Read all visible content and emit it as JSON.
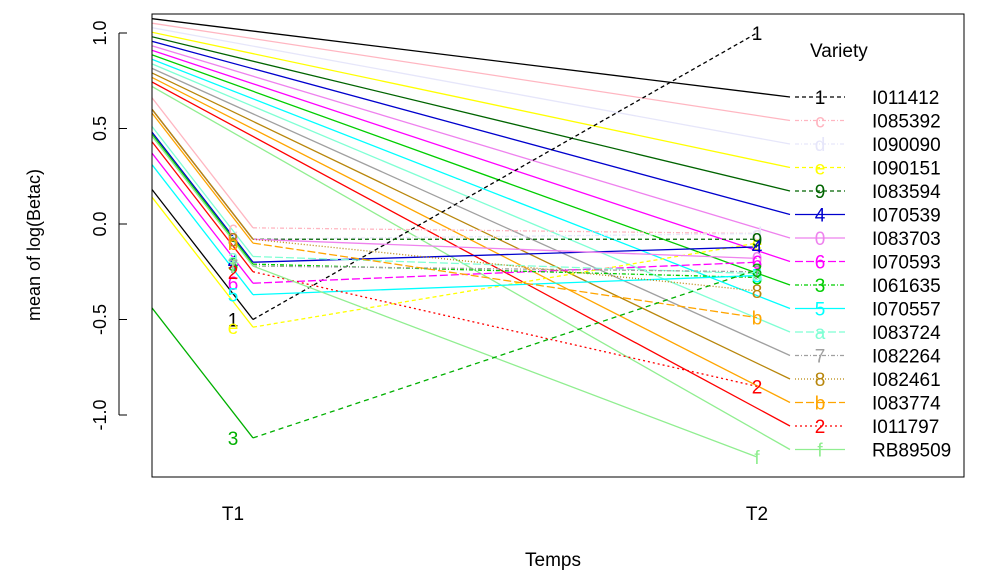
{
  "chart_data": {
    "type": "line",
    "xlabel": "Temps",
    "ylabel": "mean of  log(Betac)",
    "categories": [
      "T1",
      "T2"
    ],
    "yticks": [
      -1.0,
      -0.5,
      0.0,
      0.5,
      1.0
    ],
    "ytick_labels": [
      "-1.0",
      "-0.5",
      "0.0",
      "0.5",
      "1.0"
    ],
    "ylim": [
      -1.3,
      1.07
    ],
    "legend_title": "Variety",
    "legend_position": "right",
    "series": [
      {
        "name": "I011412",
        "symbol": "1",
        "color": "#000000",
        "dash": "4,3",
        "values": [
          -0.5,
          1.0
        ]
      },
      {
        "name": "I085392",
        "symbol": "c",
        "color": "#ffb6c1",
        "dash": "4,2,1,2",
        "values": [
          -0.02,
          -0.05
        ]
      },
      {
        "name": "I090090",
        "symbol": "d",
        "color": "#e6e6fa",
        "dash": "4,2,1,2",
        "values": [
          -0.08,
          -0.05
        ]
      },
      {
        "name": "I090151",
        "symbol": "e",
        "color": "#ffff00",
        "dash": "4,3",
        "values": [
          -0.54,
          -0.1
        ]
      },
      {
        "name": "I083594",
        "symbol": "9",
        "color": "#006400",
        "dash": "4,3",
        "values": [
          -0.08,
          -0.08
        ]
      },
      {
        "name": "I070539",
        "symbol": "4",
        "color": "#0000cd",
        "dash": "",
        "values": [
          -0.2,
          -0.12
        ]
      },
      {
        "name": "I083703",
        "symbol": "0",
        "color": "#ee82ee",
        "dash": "",
        "values": [
          -0.08,
          -0.18
        ]
      },
      {
        "name": "I070593",
        "symbol": "6",
        "color": "#ff00ff",
        "dash": "8,3",
        "values": [
          -0.31,
          -0.2
        ]
      },
      {
        "name": "I061635",
        "symbol": "3",
        "color": "#00cd00",
        "dash": "4,2,1,2",
        "values": [
          -0.21,
          -0.28
        ]
      },
      {
        "name": "I070557",
        "symbol": "5",
        "color": "#00ffff",
        "dash": "",
        "values": [
          -0.37,
          -0.27
        ]
      },
      {
        "name": "I083724",
        "symbol": "a",
        "color": "#7fffd4",
        "dash": "8,3",
        "values": [
          -0.17,
          -0.26
        ]
      },
      {
        "name": "I082264",
        "symbol": "7",
        "color": "#a0a0a0",
        "dash": "4,2,1,2",
        "values": [
          -0.22,
          -0.25
        ]
      },
      {
        "name": "I082461",
        "symbol": "8",
        "color": "#b8860b",
        "dash": "1,2",
        "values": [
          -0.08,
          -0.35
        ]
      },
      {
        "name": "I083774",
        "symbol": "b",
        "color": "#ffa500",
        "dash": "8,3",
        "values": [
          -0.1,
          -0.49
        ]
      },
      {
        "name": "I011797",
        "symbol": "2",
        "color": "#ff0000",
        "dash": "2,3",
        "values": [
          -0.25,
          -0.85
        ]
      },
      {
        "name": "RB89509",
        "symbol": "f",
        "color": "#90ee90",
        "dash": "",
        "values": [
          -0.22,
          -1.22
        ]
      },
      {
        "name": "",
        "symbol": "3",
        "color": "#00b000",
        "dash": "5,4",
        "values": [
          -1.12,
          -0.24
        ]
      }
    ]
  }
}
